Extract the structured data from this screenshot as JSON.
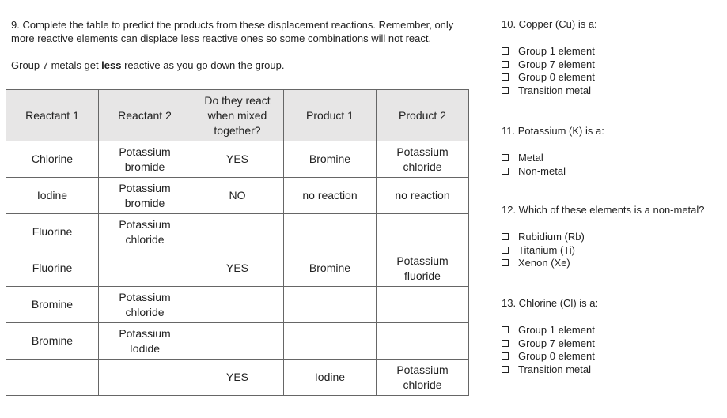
{
  "question_9": {
    "text": "9. Complete the table to predict the products from these displacement reactions. Remember, only more reactive elements can displace less reactive ones so some combinations will not react.",
    "note": {
      "before": "Group 7 metals get ",
      "bold": "less",
      "after": " reactive as you go down the group."
    }
  },
  "table": {
    "header": [
      "Reactant 1",
      "Reactant 2",
      "Do they react when mixed together?",
      "Product 1",
      "Product 2"
    ],
    "rows": [
      [
        "Chlorine",
        "Potassium bromide",
        "YES",
        "Bromine",
        "Potassium chloride"
      ],
      [
        "Iodine",
        "Potassium bromide",
        "NO",
        "no reaction",
        "no reaction"
      ],
      [
        "Fluorine",
        "Potassium chloride",
        null,
        null,
        null
      ],
      [
        "Fluorine",
        null,
        "YES",
        "Bromine",
        "Potassium fluoride"
      ],
      [
        "Bromine",
        "Potassium chloride",
        null,
        null,
        null
      ],
      [
        "Bromine",
        "Potassium Iodide",
        null,
        null,
        null
      ],
      [
        null,
        null,
        "YES",
        "Iodine",
        "Potassium chloride"
      ]
    ]
  },
  "questions": [
    {
      "label": "10. Copper (Cu) is a:",
      "options": [
        "Group 1 element",
        "Group 7 element",
        "Group 0 element",
        "Transition metal"
      ]
    },
    {
      "label": "11. Potassium (K) is a:",
      "options": [
        "Metal",
        "Non-metal"
      ]
    },
    {
      "label": "12. Which of these elements is a non-metal?",
      "options": [
        "Rubidium (Rb)",
        "Titanium (Ti)",
        "Xenon (Xe)"
      ]
    },
    {
      "label": "13. Chlorine (Cl) is a:",
      "options": [
        "Group 1 element",
        "Group 7 element",
        "Group 0 element",
        "Transition metal"
      ]
    }
  ]
}
